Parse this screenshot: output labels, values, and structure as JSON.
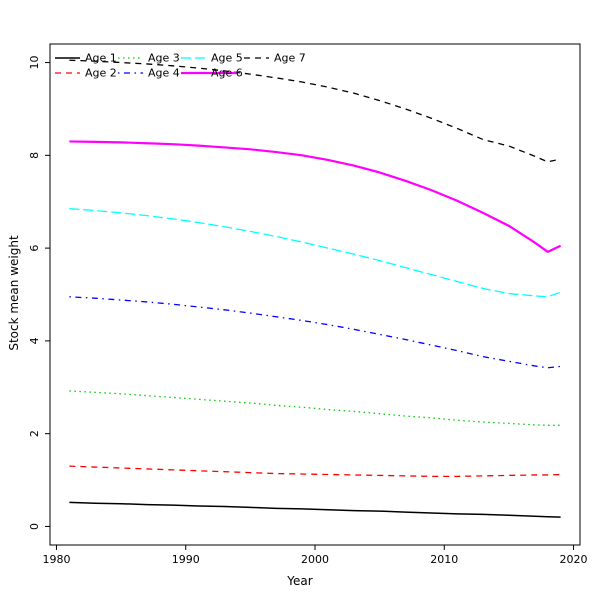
{
  "figure": {
    "background": "#ffffff",
    "foreground": "#000000"
  },
  "chart_data": {
    "type": "line",
    "title": "",
    "xlabel": "Year",
    "ylabel": "Stock mean weight",
    "xlim": [
      1979.5,
      2020.5
    ],
    "ylim": [
      -0.4,
      10.4
    ],
    "x_ticks": [
      1980,
      1990,
      2000,
      2010,
      2020
    ],
    "y_ticks": [
      0,
      2,
      4,
      6,
      8,
      10
    ],
    "grid": false,
    "box": true,
    "legend": {
      "position": "top-left",
      "columns": 4,
      "border": false
    },
    "x": [
      1981,
      1983,
      1985,
      1987,
      1989,
      1991,
      1993,
      1995,
      1997,
      1999,
      2001,
      2003,
      2005,
      2007,
      2009,
      2011,
      2013,
      2015,
      2017,
      2018,
      2019
    ],
    "series": [
      {
        "name": "Age 1",
        "color": "#000000",
        "linetype": "solid",
        "width": 1.5,
        "values": [
          0.52,
          0.5,
          0.49,
          0.47,
          0.46,
          0.44,
          0.43,
          0.41,
          0.39,
          0.38,
          0.36,
          0.34,
          0.33,
          0.31,
          0.29,
          0.27,
          0.26,
          0.24,
          0.22,
          0.21,
          0.2
        ]
      },
      {
        "name": "Age 2",
        "color": "#ff0000",
        "linetype": "dashed",
        "width": 1.3,
        "values": [
          1.3,
          1.28,
          1.26,
          1.24,
          1.22,
          1.2,
          1.18,
          1.16,
          1.14,
          1.13,
          1.12,
          1.11,
          1.1,
          1.09,
          1.08,
          1.08,
          1.09,
          1.1,
          1.11,
          1.11,
          1.12
        ]
      },
      {
        "name": "Age 3",
        "color": "#00cd00",
        "linetype": "dotted",
        "width": 1.3,
        "values": [
          2.92,
          2.89,
          2.86,
          2.82,
          2.78,
          2.74,
          2.7,
          2.66,
          2.61,
          2.57,
          2.52,
          2.48,
          2.43,
          2.38,
          2.34,
          2.29,
          2.25,
          2.22,
          2.19,
          2.18,
          2.18
        ]
      },
      {
        "name": "Age 4",
        "color": "#0000ff",
        "linetype": "dotdash",
        "width": 1.3,
        "values": [
          4.95,
          4.92,
          4.88,
          4.84,
          4.79,
          4.73,
          4.67,
          4.6,
          4.52,
          4.44,
          4.35,
          4.25,
          4.14,
          4.03,
          3.91,
          3.79,
          3.66,
          3.56,
          3.46,
          3.42,
          3.45
        ]
      },
      {
        "name": "Age 5",
        "color": "#00ffff",
        "linetype": "longdash",
        "width": 1.3,
        "values": [
          6.85,
          6.81,
          6.76,
          6.7,
          6.63,
          6.55,
          6.46,
          6.36,
          6.25,
          6.13,
          6.0,
          5.87,
          5.73,
          5.58,
          5.43,
          5.28,
          5.13,
          5.02,
          4.97,
          4.95,
          5.05
        ]
      },
      {
        "name": "Age 6",
        "color": "#ff00ff",
        "linetype": "solid",
        "width": 2.2,
        "legend_sample_len": 56,
        "values": [
          8.3,
          8.29,
          8.28,
          8.26,
          8.24,
          8.21,
          8.17,
          8.13,
          8.07,
          8.0,
          7.9,
          7.78,
          7.63,
          7.45,
          7.25,
          7.02,
          6.76,
          6.48,
          6.12,
          5.92,
          6.05
        ]
      },
      {
        "name": "Age 7",
        "color": "#000000",
        "linetype": "dashed",
        "width": 1.3,
        "values": [
          10.05,
          10.03,
          10.0,
          9.97,
          9.93,
          9.88,
          9.82,
          9.75,
          9.67,
          9.58,
          9.47,
          9.34,
          9.18,
          9.0,
          8.8,
          8.58,
          8.34,
          8.2,
          7.98,
          7.86,
          7.92
        ]
      }
    ]
  }
}
